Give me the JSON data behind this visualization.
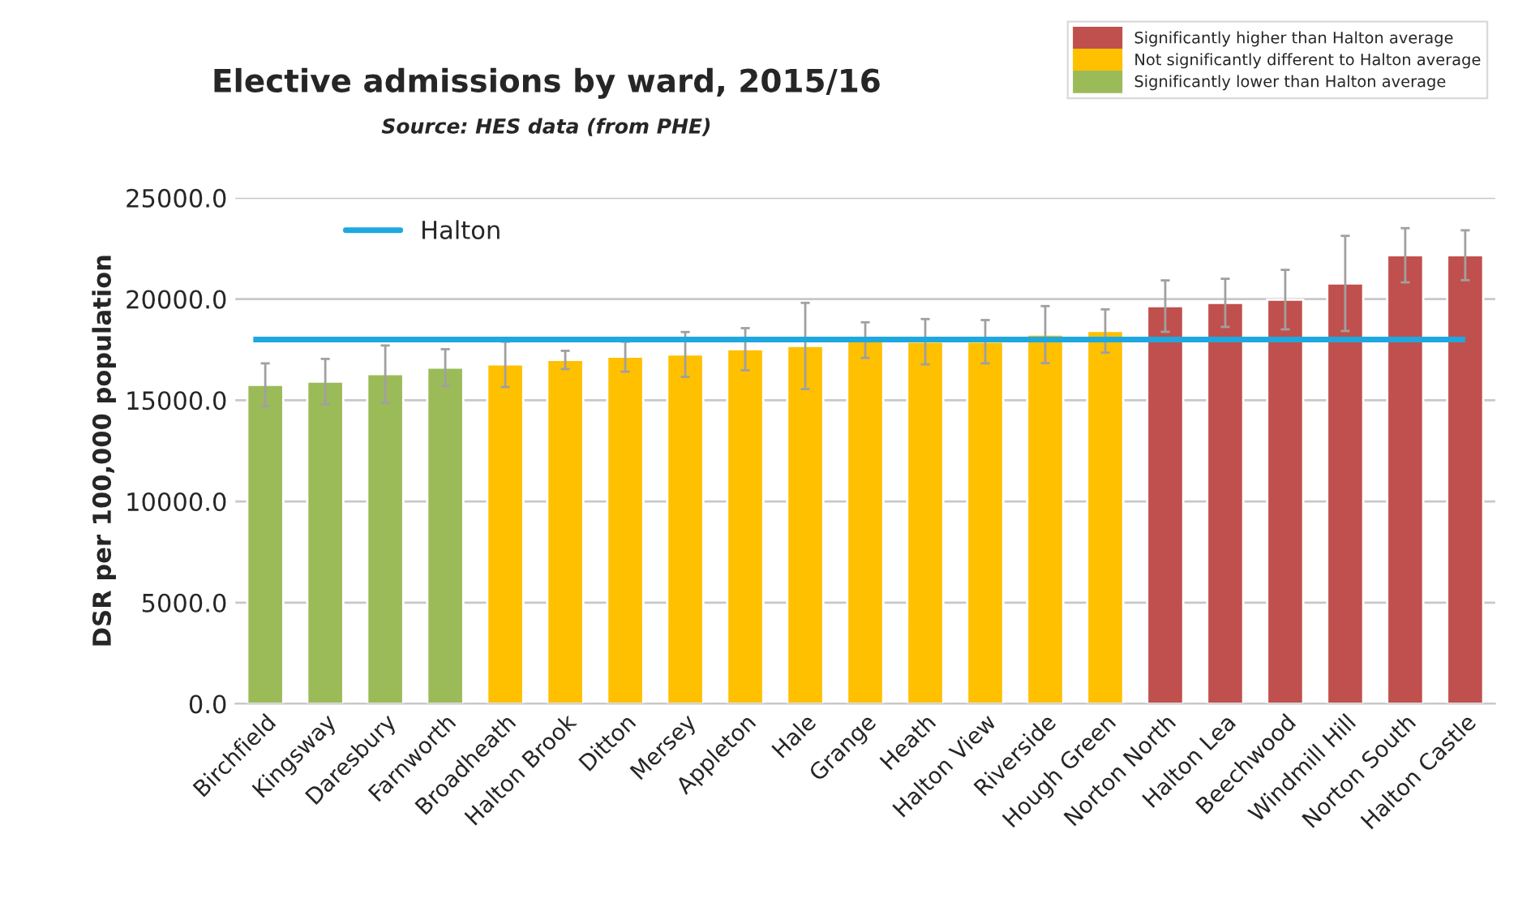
{
  "chart_data": {
    "type": "bar",
    "title": "Elective admissions by ward, 2015/16",
    "subtitle": "Source: HES data (from PHE)",
    "ylabel": "DSR per 100,000 population",
    "categories": [
      "Birchfield",
      "Kingsway",
      "Daresbury",
      "Farnworth",
      "Broadheath",
      "Halton Brook",
      "Ditton",
      "Mersey",
      "Appleton",
      "Hale",
      "Grange",
      "Heath",
      "Halton View",
      "Riverside",
      "Hough Green",
      "Norton North",
      "Halton Lea",
      "Beechwood",
      "Windmill Hill",
      "Norton South",
      "Halton Castle"
    ],
    "series": [
      {
        "name": "Significantly higher than Halton average",
        "color": "#c0504d",
        "values": [
          null,
          null,
          null,
          null,
          null,
          null,
          null,
          null,
          null,
          null,
          null,
          null,
          null,
          null,
          null,
          19650,
          19810,
          19970,
          20770,
          22160,
          22160
        ],
        "errors": [
          null,
          null,
          null,
          null,
          null,
          null,
          null,
          null,
          null,
          null,
          null,
          null,
          null,
          null,
          null,
          1270,
          1190,
          1470,
          2350,
          1340,
          1230
        ]
      },
      {
        "name": "Not significantly different to Halton average",
        "color": "#ffc000",
        "values": [
          null,
          null,
          null,
          null,
          16770,
          16990,
          17150,
          17260,
          17520,
          17680,
          17970,
          17890,
          17890,
          18240,
          18420,
          null,
          null,
          null,
          null,
          null,
          null
        ],
        "errors": [
          null,
          null,
          null,
          null,
          1120,
          450,
          740,
          1110,
          1040,
          2130,
          880,
          1120,
          1070,
          1410,
          1070,
          null,
          null,
          null,
          null,
          null,
          null
        ]
      },
      {
        "name": "Significantly lower than Halton average",
        "color": "#9bbb59",
        "values": [
          15760,
          15920,
          16290,
          16610,
          null,
          null,
          null,
          null,
          null,
          null,
          null,
          null,
          null,
          null,
          null,
          null,
          null,
          null,
          null,
          null,
          null
        ],
        "errors": [
          1060,
          1120,
          1410,
          910,
          null,
          null,
          null,
          null,
          null,
          null,
          null,
          null,
          null,
          null,
          null,
          null,
          null,
          null,
          null,
          null,
          null
        ]
      }
    ],
    "ref_lines": [
      {
        "axis": "y",
        "value": 18000,
        "label": "Halton",
        "color": "#1fa8e0"
      }
    ],
    "ylim": [
      0,
      25000
    ],
    "yticks": [
      {
        "value": 0,
        "label": "0.0"
      },
      {
        "value": 5000,
        "label": "5000.0"
      },
      {
        "value": 10000,
        "label": "10000.0"
      },
      {
        "value": 15000,
        "label": "15000.0"
      },
      {
        "value": 20000,
        "label": "20000.0"
      },
      {
        "value": 25000,
        "label": "25000.0"
      }
    ],
    "grid": "y",
    "legend": "top right"
  }
}
